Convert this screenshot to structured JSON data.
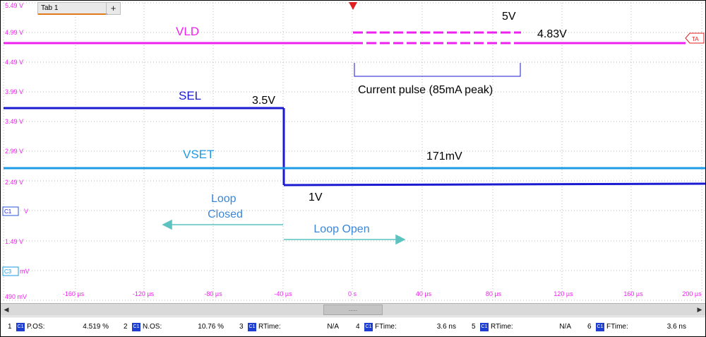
{
  "tab": {
    "label": "Tab 1",
    "add_label": "+"
  },
  "colors": {
    "vld": "#ee22ee",
    "sel": "#1a1ad0",
    "vset": "#1e9be6",
    "grid": "#b9b9b9",
    "axis": "#ee22ee",
    "annotation": "#5cc3c0"
  },
  "y_axis_labels": [
    "5.49 V",
    "4.99 V",
    "4.49 V",
    "3.99 V",
    "3.49 V",
    "2.99 V",
    "2.49 V",
    "V",
    "1.49 V",
    "mV",
    "490 mV"
  ],
  "channel_markers": {
    "c1": "C1",
    "c3": "C3"
  },
  "x_axis_labels": [
    "-160 µs",
    "-120 µs",
    "-80 µs",
    "-40 µs",
    "0 s",
    "40 µs",
    "80 µs",
    "120 µs",
    "160 µs",
    "200 µs"
  ],
  "trace_labels": {
    "vld": "VLD",
    "sel": "SEL",
    "vset": "VSET"
  },
  "annotations": {
    "v5": "5V",
    "v483": "4.83V",
    "v35": "3.5V",
    "v171": "171mV",
    "v1": "1V",
    "pulse": "Current pulse (85mA peak)",
    "loop_closed": "Loop\nClosed",
    "loop_open": "Loop Open"
  },
  "ta_marker": "TA",
  "scroll": {
    "thumb_label": "....."
  },
  "measurements": [
    {
      "index": "1",
      "channel": "C1",
      "name": "P.OS:",
      "value": "4.519 %"
    },
    {
      "index": "2",
      "channel": "C1",
      "name": "N.OS:",
      "value": "10.76 %"
    },
    {
      "index": "3",
      "channel": "C1",
      "name": "RTime:",
      "value": "N/A"
    },
    {
      "index": "4",
      "channel": "C1",
      "name": "FTime:",
      "value": "3.6 ns"
    },
    {
      "index": "5",
      "channel": "C1",
      "name": "RTime:",
      "value": "N/A"
    },
    {
      "index": "6",
      "channel": "C1",
      "name": "FTime:",
      "value": "3.6 ns"
    }
  ]
}
